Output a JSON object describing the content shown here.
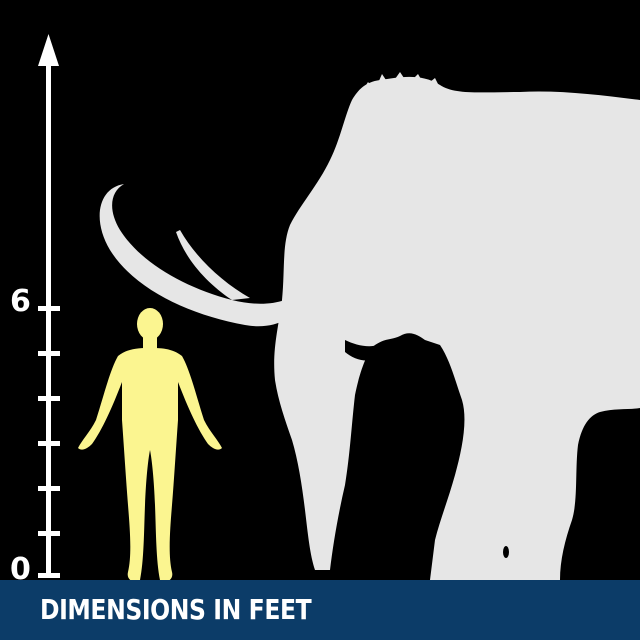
{
  "scale": {
    "unit_label": "DIMENSIONS IN FEET",
    "tick_labels": [
      "6",
      "0"
    ]
  },
  "figures": [
    {
      "name": "human",
      "color": "#fbf590",
      "height_ft": 6
    },
    {
      "name": "woolly-mammoth",
      "color": "#e6e6e6"
    }
  ],
  "colors": {
    "background": "#000000",
    "footer": "#0c3c68",
    "axis": "#ffffff"
  }
}
